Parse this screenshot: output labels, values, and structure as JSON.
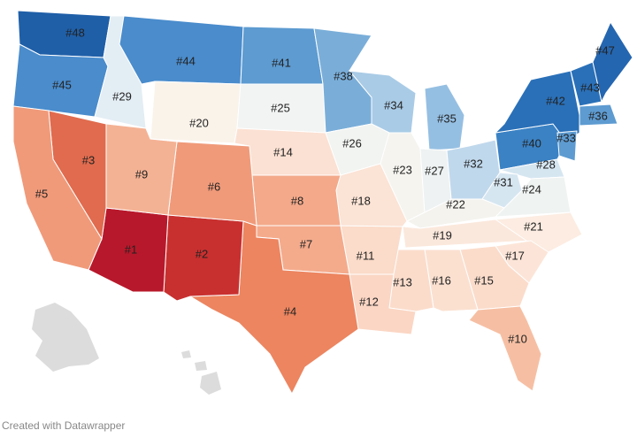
{
  "map": {
    "regions": [
      {
        "label": "#48",
        "color": "#1f5fa8"
      },
      {
        "label": "#45",
        "color": "#4a8ccc"
      },
      {
        "label": "#29",
        "color": "#e3edf4"
      },
      {
        "label": "#44",
        "color": "#4a8ccc"
      },
      {
        "label": "#20",
        "color": "#faf3ea"
      },
      {
        "label": "#41",
        "color": "#5d9bd1"
      },
      {
        "label": "#25",
        "color": "#f1f4f3"
      },
      {
        "label": "#14",
        "color": "#fbe1d3"
      },
      {
        "label": "#38",
        "color": "#7aaed9"
      },
      {
        "label": "#26",
        "color": "#f2f4f1"
      },
      {
        "label": "#34",
        "color": "#a9cbe6"
      },
      {
        "label": "#35",
        "color": "#95bfe2"
      },
      {
        "label": "#23",
        "color": "#f5f4ef"
      },
      {
        "label": "#27",
        "color": "#eef2f2"
      },
      {
        "label": "#32",
        "color": "#c0d8ec"
      },
      {
        "label": "#40",
        "color": "#3b82c4"
      },
      {
        "label": "#42",
        "color": "#2a70b8"
      },
      {
        "label": "#43",
        "color": "#2a70b8"
      },
      {
        "label": "#47",
        "color": "#2566b0"
      },
      {
        "label": "#36",
        "color": "#5d9bd1"
      },
      {
        "label": "#33",
        "color": "#5d9bd1"
      },
      {
        "label": "#28",
        "color": "#d6e6f1"
      },
      {
        "label": "#31",
        "color": "#d6e6f1"
      },
      {
        "label": "#24",
        "color": "#eff3f2"
      },
      {
        "label": "#22",
        "color": "#f4f3ee"
      },
      {
        "label": "#19",
        "color": "#fbe8dc"
      },
      {
        "label": "#21",
        "color": "#fcece1"
      },
      {
        "label": "#17",
        "color": "#fce5d8"
      },
      {
        "label": "#15",
        "color": "#fbdccb"
      },
      {
        "label": "#16",
        "color": "#fbe0d0"
      },
      {
        "label": "#13",
        "color": "#fbdccb"
      },
      {
        "label": "#12",
        "color": "#fbd6c4"
      },
      {
        "label": "#11",
        "color": "#fbdbc9"
      },
      {
        "label": "#18",
        "color": "#fbe3d5"
      },
      {
        "label": "#8",
        "color": "#f3a98a"
      },
      {
        "label": "#7",
        "color": "#f4ab8c"
      },
      {
        "label": "#4",
        "color": "#ec8560"
      },
      {
        "label": "#2",
        "color": "#c8302f"
      },
      {
        "label": "#1",
        "color": "#b8182b"
      },
      {
        "label": "#6",
        "color": "#f09a7a"
      },
      {
        "label": "#9",
        "color": "#f4b294"
      },
      {
        "label": "#3",
        "color": "#e06b4e"
      },
      {
        "label": "#5",
        "color": "#f09a7a"
      },
      {
        "label": "#10",
        "color": "#f6bfa3"
      }
    ]
  },
  "footer": "Created with Datawrapper"
}
